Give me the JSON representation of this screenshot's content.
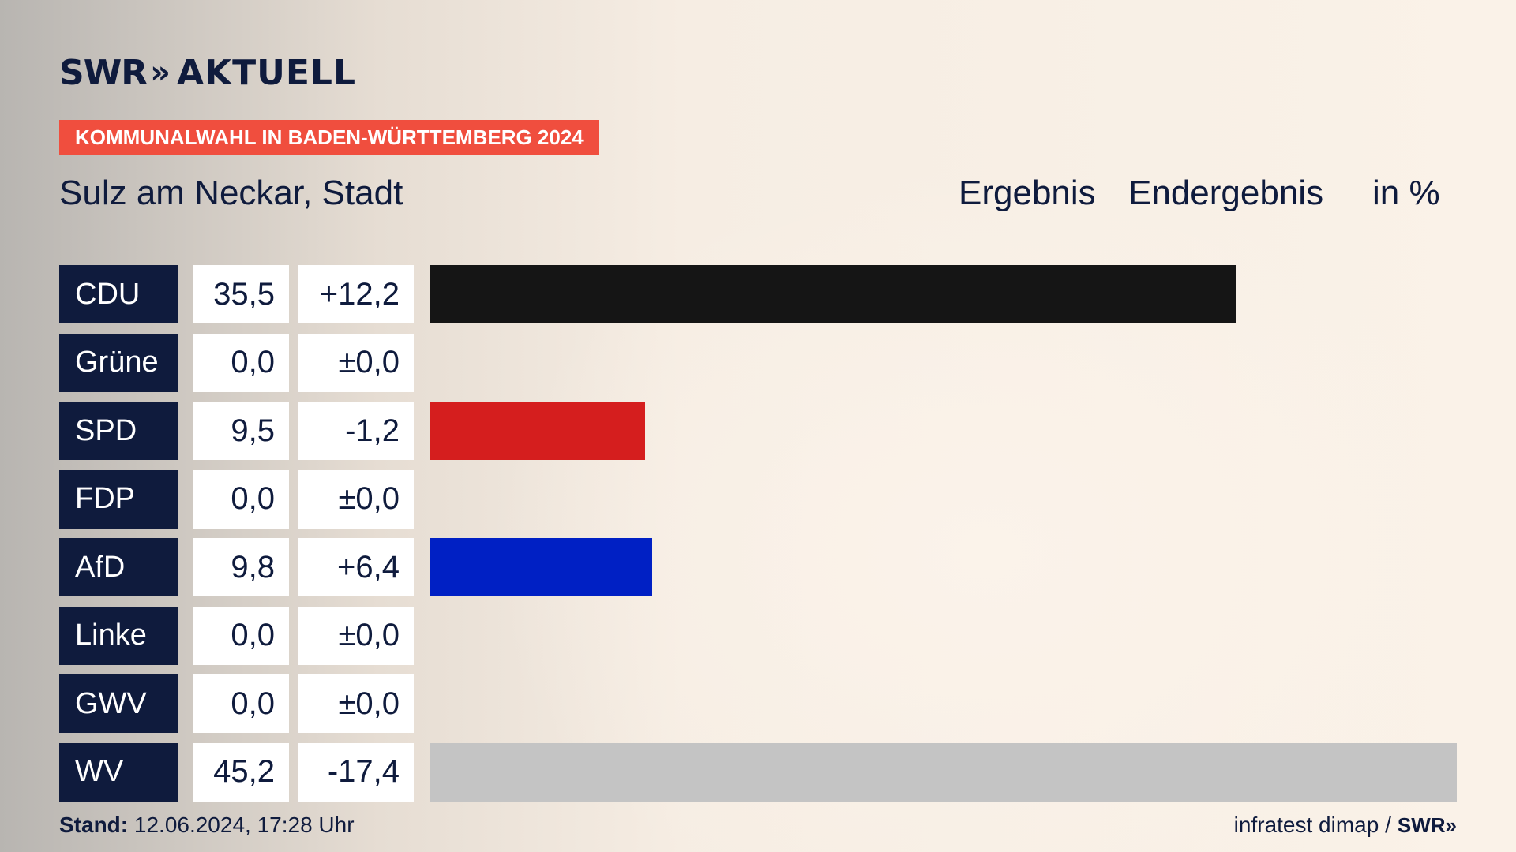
{
  "header": {
    "logo_text": "SWR",
    "logo_arrows": "»",
    "logo_word": "AKTUELL",
    "banner": "KOMMUNALWAHL IN BADEN-WÜRTTEMBERG 2024",
    "place": "Sulz am Neckar, Stadt",
    "col_result": "Ergebnis",
    "col_final": "Endergebnis",
    "col_unit": "in %"
  },
  "chart_data": {
    "type": "bar",
    "title": "Sulz am Neckar, Stadt",
    "subtitle": "KOMMUNALWAHL IN BADEN-WÜRTTEMBERG 2024",
    "categories": [
      "CDU",
      "Grüne",
      "SPD",
      "FDP",
      "AfD",
      "Linke",
      "GWV",
      "WV"
    ],
    "values": [
      35.5,
      0.0,
      9.5,
      0.0,
      9.8,
      0.0,
      0.0,
      45.2
    ],
    "value_labels": [
      "35,5",
      "0,0",
      "9,5",
      "0,0",
      "9,8",
      "0,0",
      "0,0",
      "45,2"
    ],
    "diff_labels": [
      "+12,2",
      "±0,0",
      "-1,2",
      "±0,0",
      "+6,4",
      "±0,0",
      "±0,0",
      "-17,4"
    ],
    "colors": [
      "#151515",
      "#1a9e3b",
      "#d51e1e",
      "#f5d000",
      "#0020c4",
      "#b0105a",
      "#7a7a7a",
      "#c4c4c4"
    ],
    "xlim": [
      0,
      45.2
    ],
    "unit": "in %"
  },
  "footer": {
    "stand_label": "Stand:",
    "stand_value": "12.06.2024, 17:28 Uhr",
    "source": "infratest dimap /",
    "source_logo": "SWR»"
  }
}
